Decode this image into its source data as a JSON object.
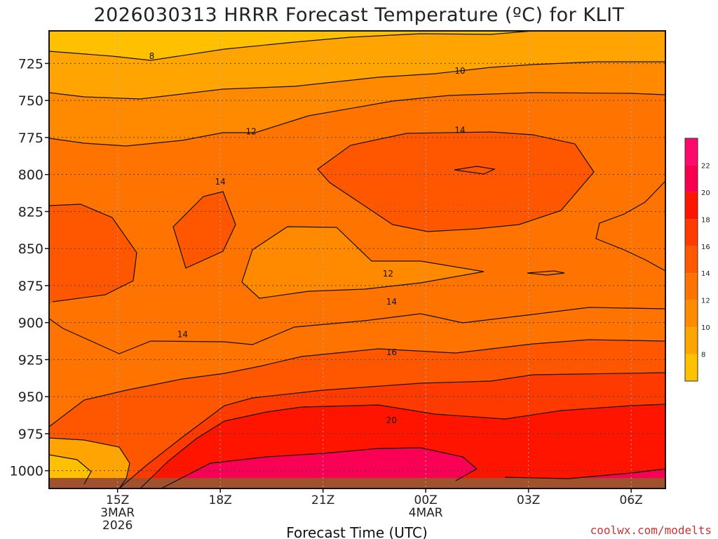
{
  "page": {
    "credit": "coolwx.com/modelts"
  },
  "chart_data": {
    "type": "heatmap",
    "title": "2026030313 HRRR Forecast Temperature (ºC) for KLIT",
    "xlabel": "Forecast Time (UTC)",
    "ylabel": "",
    "x_ticks": [
      {
        "label": "15Z",
        "sub": [
          "3MAR",
          "2026"
        ],
        "hour": 0
      },
      {
        "label": "18Z",
        "sub": [],
        "hour": 3
      },
      {
        "label": "21Z",
        "sub": [],
        "hour": 6
      },
      {
        "label": "00Z",
        "sub": [
          "4MAR"
        ],
        "hour": 9
      },
      {
        "label": "03Z",
        "sub": [],
        "hour": 12
      },
      {
        "label": "06Z",
        "sub": [],
        "hour": 15
      }
    ],
    "xlim_hours": [
      -2,
      16
    ],
    "y_axis": {
      "orientation": "inverted",
      "unit": "hPa",
      "ylim": [
        703,
        1012
      ]
    },
    "y_ticks": [
      725,
      750,
      775,
      800,
      825,
      850,
      875,
      900,
      925,
      950,
      975,
      1000
    ],
    "grid": "dotted",
    "colorbar": {
      "levels": [
        8,
        10,
        12,
        14,
        16,
        18,
        20,
        22
      ],
      "colors": [
        "#ffc200",
        "#ffa500",
        "#ff8c00",
        "#ff7400",
        "#ff5800",
        "#ff3c00",
        "#ff1600",
        "#f70050",
        "#ff0a6a"
      ]
    },
    "fill_colors": {
      "8": "#ffc000",
      "10": "#ffa400",
      "12": "#ff8a00",
      "14": "#ff7300",
      "16": "#ff5700",
      "18": "#ff3a00",
      "20": "#ff1400",
      "22": "#fa0055",
      "ground": "#a0522d"
    },
    "contour_labels": [
      {
        "text": "8",
        "hour": 1.0,
        "p": 720
      },
      {
        "text": "10",
        "hour": 10.0,
        "p": 730
      },
      {
        "text": "12",
        "hour": 3.9,
        "p": 771
      },
      {
        "text": "14",
        "hour": 10.0,
        "p": 770
      },
      {
        "text": "14",
        "hour": 3.0,
        "p": 805
      },
      {
        "text": "12",
        "hour": 7.9,
        "p": 867
      },
      {
        "text": "14",
        "hour": 8.0,
        "p": 886
      },
      {
        "text": "14",
        "hour": 1.9,
        "p": 908
      },
      {
        "text": "16",
        "hour": 8.0,
        "p": 920
      },
      {
        "text": "20",
        "hour": 8.0,
        "p": 966
      }
    ]
  }
}
